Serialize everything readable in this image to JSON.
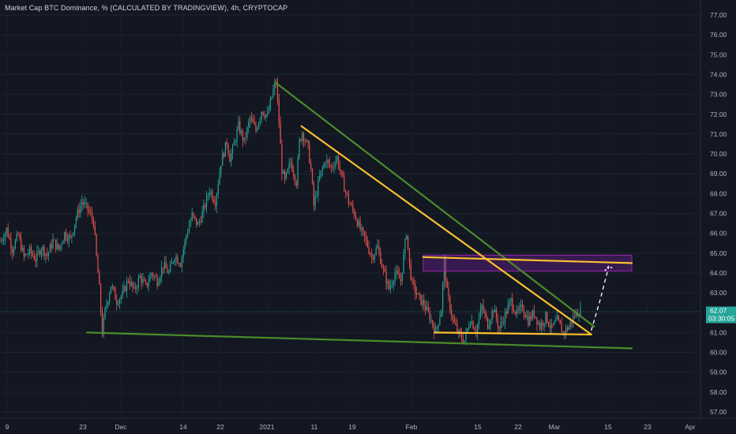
{
  "title": "Market Cap BTC Dominance, % (CALCULATED BY TRADINGVIEW), 4h, CRYPTOCAP",
  "chart_data": {
    "type": "candlestick",
    "title": "Market Cap BTC Dominance, % (CALCULATED BY TRADINGVIEW), 4h, CRYPTOCAP",
    "ylim": [
      56.5,
      77.5
    ],
    "y_ticks": [
      "77.00",
      "76.00",
      "75.00",
      "74.00",
      "73.00",
      "72.00",
      "71.00",
      "70.00",
      "69.00",
      "68.00",
      "67.00",
      "66.00",
      "65.00",
      "64.00",
      "63.00",
      "62.00",
      "61.00",
      "60.00",
      "59.00",
      "58.00",
      "57.00"
    ],
    "x_ticks": [
      "9",
      "23",
      "Dec",
      "14",
      "22",
      "2021",
      "11",
      "19",
      "Feb",
      "15",
      "22",
      "Mar",
      "15",
      "23",
      "Apr"
    ],
    "grid": true,
    "colors": {
      "up": "#26a69a",
      "down": "#ef5350",
      "green_line": "#4a8c2a",
      "yellow_line": "#fbc02d",
      "zone": "#7b1fa2",
      "price_bg": "#26a69a"
    },
    "current_price": "62.07",
    "countdown": "03:30:05",
    "price_path": [
      [
        0,
        65.6
      ],
      [
        2,
        66.2
      ],
      [
        4,
        65.2
      ],
      [
        6,
        65.9
      ],
      [
        8,
        64.8
      ],
      [
        10,
        65.1
      ],
      [
        12,
        64.7
      ],
      [
        14,
        65.3
      ],
      [
        16,
        64.9
      ],
      [
        18,
        65.6
      ],
      [
        20,
        65.2
      ],
      [
        22,
        66.0
      ],
      [
        24,
        65.7
      ],
      [
        26,
        66.8
      ],
      [
        28,
        67.6
      ],
      [
        30,
        67.2
      ],
      [
        32,
        66.6
      ],
      [
        33,
        64.8
      ],
      [
        34,
        63.2
      ],
      [
        35,
        61.0
      ],
      [
        36,
        62.1
      ],
      [
        38,
        63.4
      ],
      [
        40,
        62.6
      ],
      [
        42,
        62.9
      ],
      [
        44,
        63.7
      ],
      [
        46,
        63.1
      ],
      [
        48,
        63.8
      ],
      [
        50,
        63.3
      ],
      [
        52,
        64.0
      ],
      [
        54,
        63.6
      ],
      [
        56,
        64.4
      ],
      [
        58,
        64.0
      ],
      [
        60,
        64.9
      ],
      [
        62,
        64.5
      ],
      [
        64,
        65.9
      ],
      [
        66,
        66.9
      ],
      [
        68,
        66.4
      ],
      [
        70,
        67.2
      ],
      [
        72,
        68.2
      ],
      [
        74,
        67.6
      ],
      [
        76,
        69.6
      ],
      [
        78,
        70.6
      ],
      [
        79,
        69.8
      ],
      [
        80,
        70.2
      ],
      [
        82,
        71.4
      ],
      [
        84,
        70.6
      ],
      [
        86,
        71.8
      ],
      [
        88,
        71.2
      ],
      [
        90,
        72.2
      ],
      [
        92,
        71.9
      ],
      [
        94,
        73.2
      ],
      [
        95,
        73.6
      ],
      [
        96,
        71.6
      ],
      [
        97,
        69.2
      ],
      [
        98,
        68.6
      ],
      [
        100,
        69.6
      ],
      [
        102,
        68.6
      ],
      [
        103,
        70.6
      ],
      [
        104,
        71.1
      ],
      [
        106,
        70.3
      ],
      [
        107,
        69.2
      ],
      [
        108,
        67.4
      ],
      [
        110,
        68.8
      ],
      [
        112,
        69.7
      ],
      [
        114,
        69.3
      ],
      [
        116,
        69.8
      ],
      [
        118,
        68.6
      ],
      [
        120,
        67.6
      ],
      [
        122,
        67.0
      ],
      [
        124,
        66.2
      ],
      [
        126,
        65.6
      ],
      [
        128,
        64.8
      ],
      [
        130,
        65.3
      ],
      [
        132,
        64.1
      ],
      [
        134,
        63.2
      ],
      [
        136,
        64.0
      ],
      [
        138,
        63.6
      ],
      [
        140,
        66.1
      ],
      [
        141,
        64.4
      ],
      [
        142,
        63.4
      ],
      [
        144,
        62.8
      ],
      [
        146,
        62.4
      ],
      [
        148,
        61.8
      ],
      [
        150,
        61.0
      ],
      [
        152,
        62.2
      ],
      [
        153,
        64.6
      ],
      [
        154,
        63.0
      ],
      [
        156,
        61.6
      ],
      [
        158,
        60.9
      ],
      [
        160,
        60.6
      ],
      [
        162,
        61.7
      ],
      [
        164,
        61.1
      ],
      [
        166,
        62.3
      ],
      [
        168,
        61.4
      ],
      [
        170,
        62.2
      ],
      [
        172,
        61.2
      ],
      [
        174,
        61.9
      ],
      [
        176,
        62.6
      ],
      [
        178,
        61.9
      ],
      [
        180,
        62.3
      ],
      [
        182,
        61.6
      ],
      [
        184,
        62.0
      ],
      [
        186,
        61.3
      ],
      [
        188,
        61.8
      ],
      [
        190,
        61.2
      ],
      [
        192,
        61.6
      ],
      [
        194,
        61.0
      ],
      [
        196,
        61.3
      ],
      [
        198,
        61.9
      ],
      [
        200,
        62.1
      ]
    ],
    "drawings": [
      {
        "name": "green-upper-trendline",
        "color": "green_line",
        "from": [
          95,
          73.6
        ],
        "to": [
          205,
          61.3
        ]
      },
      {
        "name": "green-lower-trendline",
        "color": "green_line",
        "from": [
          30,
          61.0
        ],
        "to": [
          218,
          60.2
        ]
      },
      {
        "name": "yellow-upper-trendline",
        "color": "yellow_line",
        "from": [
          104,
          71.4
        ],
        "to": [
          204,
          60.9
        ]
      },
      {
        "name": "yellow-bottom-line",
        "color": "yellow_line",
        "from": [
          150,
          61.0
        ],
        "to": [
          204,
          60.9
        ]
      },
      {
        "name": "yellow-resistance-line",
        "color": "yellow_line",
        "from": [
          146,
          64.8
        ],
        "to": [
          218,
          64.5
        ]
      }
    ],
    "zone": {
      "from": [
        146,
        64.9
      ],
      "to": [
        218,
        64.1
      ]
    },
    "projection": {
      "from": [
        204,
        61.1
      ],
      "via": [
        207,
        62.6
      ],
      "to": [
        210,
        64.3
      ]
    }
  }
}
